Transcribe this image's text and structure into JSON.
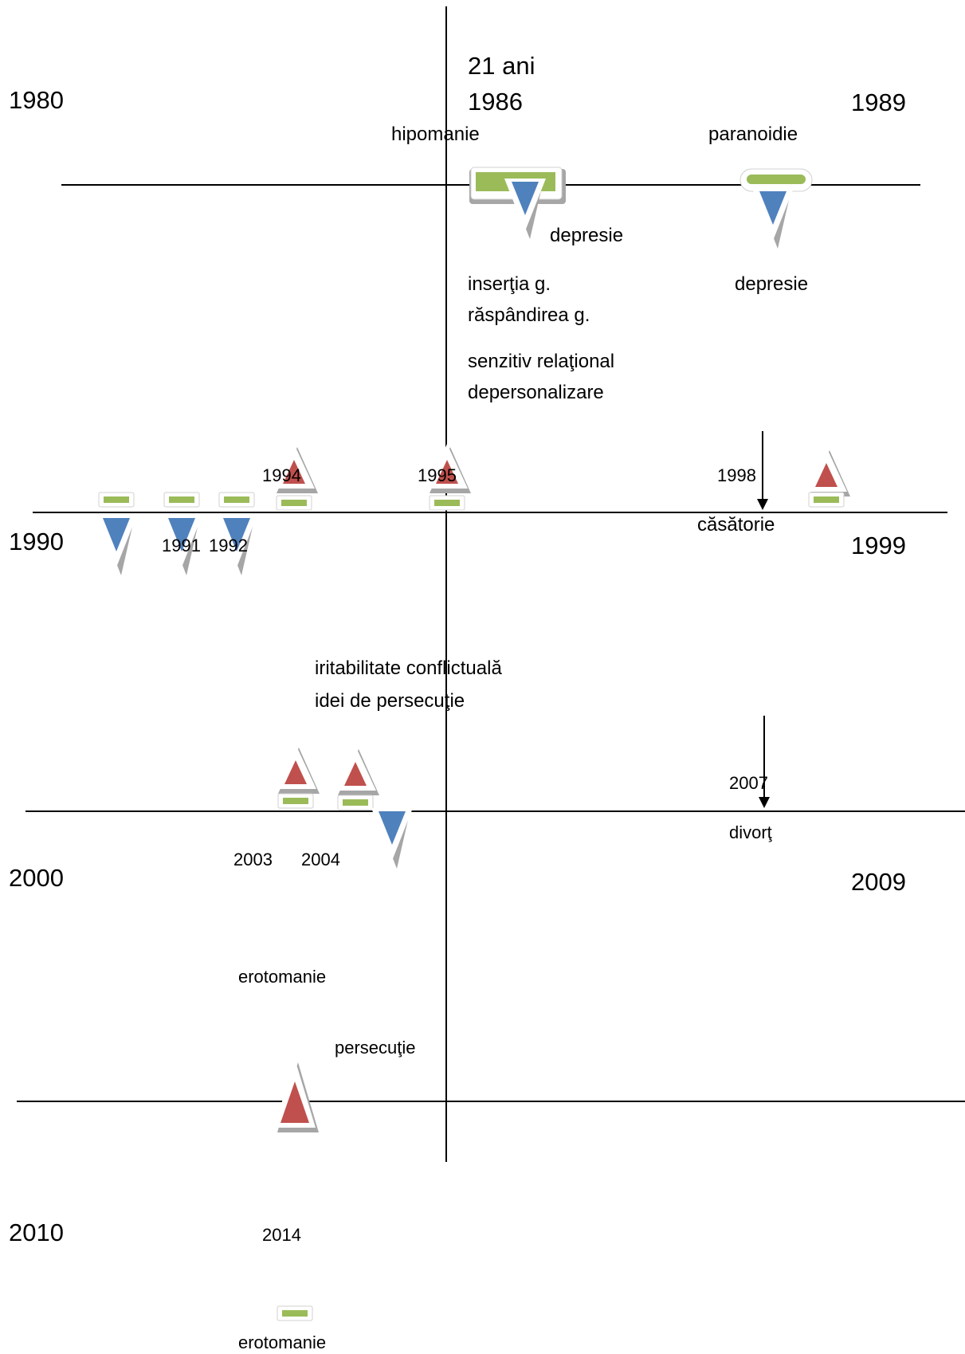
{
  "decades": {
    "d1980": "1980",
    "d1989": "1989",
    "d1990": "1990",
    "d1999": "1999",
    "d2000": "2000",
    "d2009": "2009",
    "d2010": "2010"
  },
  "events": {
    "age": "21 ani",
    "y1986": "1986",
    "hipomanie": "hipomanie",
    "paranoidie": "paranoidie",
    "depresie1": "depresie",
    "depresie2": "depresie",
    "insertia": "inserţia g.",
    "raspandirea": "răspândirea g.",
    "senzitiv": "senzitiv relaţional",
    "depersonalizare": "depersonalizare",
    "y1994": "1994",
    "y1995": "1995",
    "y1998": "1998",
    "casatorie": "căsătorie",
    "y1991": "1991",
    "y1992": "1992",
    "iritabilitate": "iritabilitate conflictuală",
    "idei_persecutie": "idei de persecuţie",
    "y2007": "2007",
    "divort": "divorţ",
    "y2003": "2003",
    "y2004": "2004",
    "erotomanie1": "erotomanie",
    "persecutie": "persecuţie",
    "y2014": "2014",
    "erotomanie2": "erotomanie"
  },
  "colors": {
    "green": "#9bbb59",
    "blue": "#4f81bd",
    "red": "#c0504d",
    "shadow": "#a6a6a6"
  }
}
